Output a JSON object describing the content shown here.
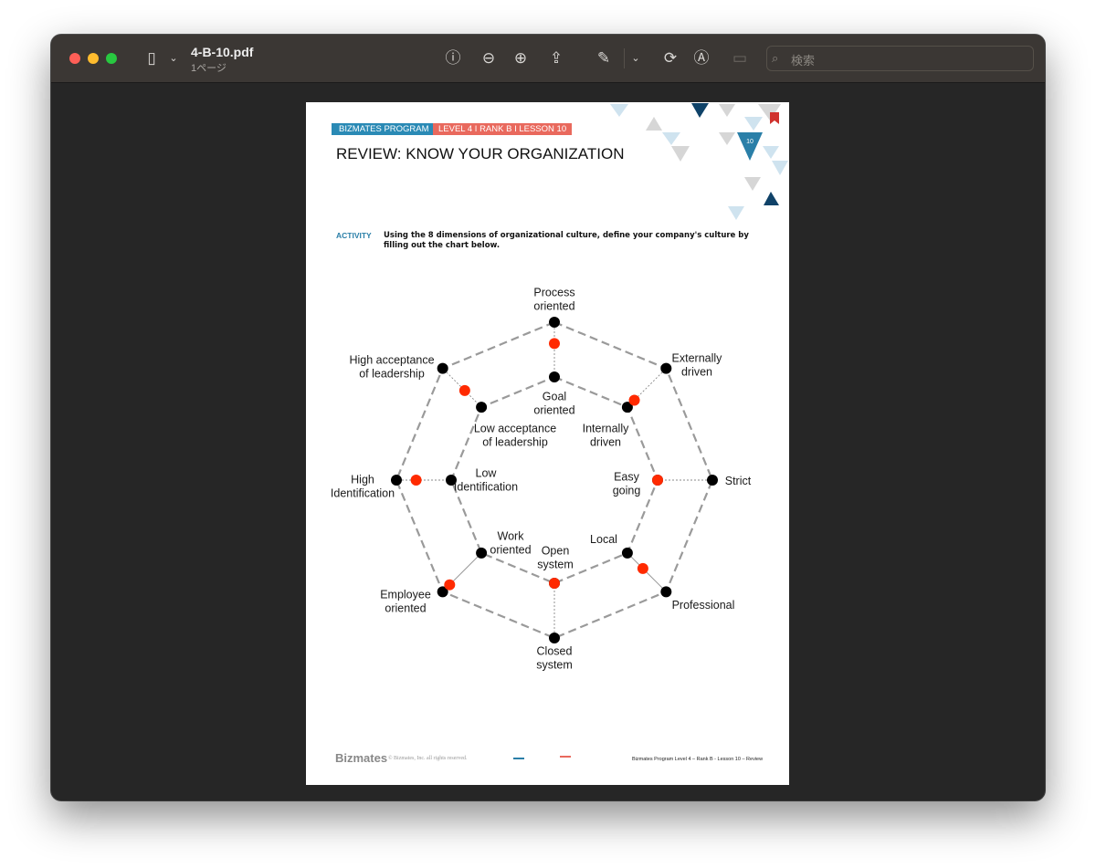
{
  "window": {
    "title": "4-B-10.pdf",
    "subtitle": "1ページ",
    "search_placeholder": "検索",
    "toolbar_icons": [
      "sidebar-icon",
      "chevron-down-icon",
      "info-icon",
      "zoom-out-icon",
      "zoom-in-icon",
      "share-icon",
      "highlighter-icon",
      "chevron-down-icon",
      "rotate-icon",
      "markup-icon",
      "form-fill-icon",
      "search-icon"
    ]
  },
  "document": {
    "header_program": "BIZMATES PROGRAM",
    "header_lesson": "LEVEL 4  I  RANK B  I  LESSON 10",
    "lesson_badge": "10",
    "title": "REVIEW: KNOW YOUR ORGANIZATION",
    "activity_label": "ACTIVITY",
    "instructions": "Using the 8 dimensions of organizational culture, define your company's culture by filling out the chart below.",
    "colors": {
      "blue": "#2a8ab5",
      "salmon": "#e9695d",
      "marker": "#ff2a00",
      "navy": "#0f4268"
    },
    "chart": {
      "axes": [
        {
          "outer": [
            "Process",
            "oriented"
          ],
          "inner": [
            "Goal",
            "oriented"
          ],
          "level": 0.61
        },
        {
          "outer": [
            "Externally",
            "driven"
          ],
          "inner": [
            "Internally",
            "driven"
          ],
          "level": 0.18
        },
        {
          "outer": [
            "Strict"
          ],
          "inner": [
            "Easy",
            "going"
          ],
          "level": 0.0
        },
        {
          "outer": [
            "Professional"
          ],
          "inner": [
            "Local"
          ],
          "level": 0.4
        },
        {
          "outer": [
            "Closed",
            "system"
          ],
          "inner": [
            "Open",
            "system"
          ],
          "level": 0.0
        },
        {
          "outer": [
            "Employee",
            "oriented"
          ],
          "inner": [
            "Work",
            "oriented"
          ],
          "level": 0.82
        },
        {
          "outer": [
            "High",
            "Identification"
          ],
          "inner": [
            "Low",
            "Identification"
          ],
          "level": 0.64
        },
        {
          "outer": [
            "High acceptance",
            "of leadership"
          ],
          "inner": [
            "Low acceptance",
            "of leadership"
          ],
          "level": 0.43
        }
      ]
    },
    "footer": {
      "logo": "Bizmates",
      "copyright": "© Bizmates, Inc. all rights reserved.",
      "right": "Bizmates Program Level 4 – Rank B - Lesson 10 – Review"
    }
  }
}
